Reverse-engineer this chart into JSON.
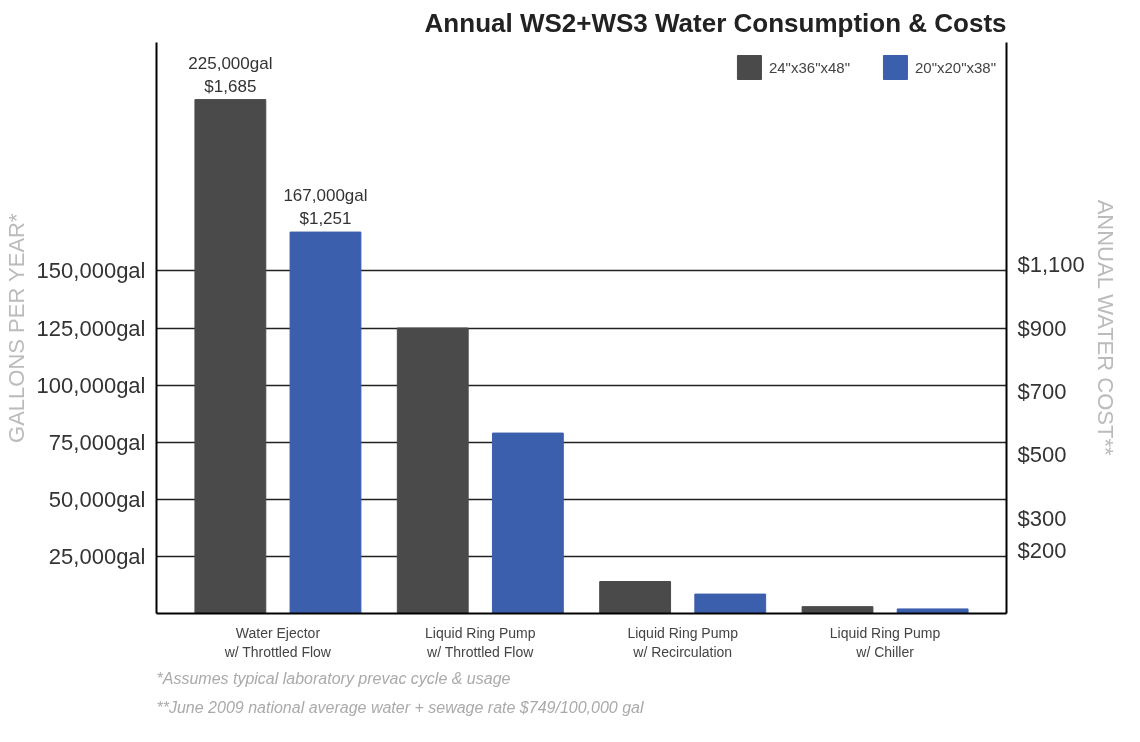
{
  "chart_data": {
    "type": "bar",
    "title": "Annual WS2+WS3 Water Consumption & Costs",
    "ylabel": "GALLONS PER YEAR*",
    "y2label": "ANNUAL WATER COST**",
    "categories": [
      "Water Ejector\nw/ Throttled Flow",
      "Liquid Ring Pump\nw/ Throttled Flow",
      "Liquid Ring Pump\nw/ Recirculation",
      "Liquid Ring Pump\nw/ Chiller"
    ],
    "series": [
      {
        "name": "24\"x36\"x48\"",
        "color": "#4a4a4a",
        "values": [
          225000,
          125000,
          14000,
          3000
        ],
        "value_labels": [
          "225,000gal\n$1,685",
          null,
          null,
          null
        ]
      },
      {
        "name": "20\"x20\"x38\"",
        "color": "#3b5fad",
        "values": [
          167000,
          79000,
          8500,
          2000
        ],
        "value_labels": [
          "167,000gal\n$1,251",
          null,
          null,
          null
        ]
      }
    ],
    "ylim": [
      0,
      250000
    ],
    "yticks": [
      {
        "value": 25000,
        "label": "25,000gal"
      },
      {
        "value": 50000,
        "label": "50,000gal"
      },
      {
        "value": 75000,
        "label": "75,000gal"
      },
      {
        "value": 100000,
        "label": "100,000gal"
      },
      {
        "value": 125000,
        "label": "125,000gal"
      },
      {
        "value": 150000,
        "label": "150,000gal"
      }
    ],
    "y2lim": [
      0,
      1800
    ],
    "y2ticks": [
      {
        "value": 200,
        "label": "$200"
      },
      {
        "value": 300,
        "label": "$300"
      },
      {
        "value": 500,
        "label": "$500"
      },
      {
        "value": 700,
        "label": "$700"
      },
      {
        "value": 900,
        "label": "$900"
      },
      {
        "value": 1100,
        "label": "$1,100"
      }
    ],
    "grid": "y",
    "legend": "top right",
    "annotations": [
      "*Assumes typical laboratory prevac cycle & usage",
      "**June 2009 national average water + sewage rate $749/100,000 gal"
    ]
  }
}
